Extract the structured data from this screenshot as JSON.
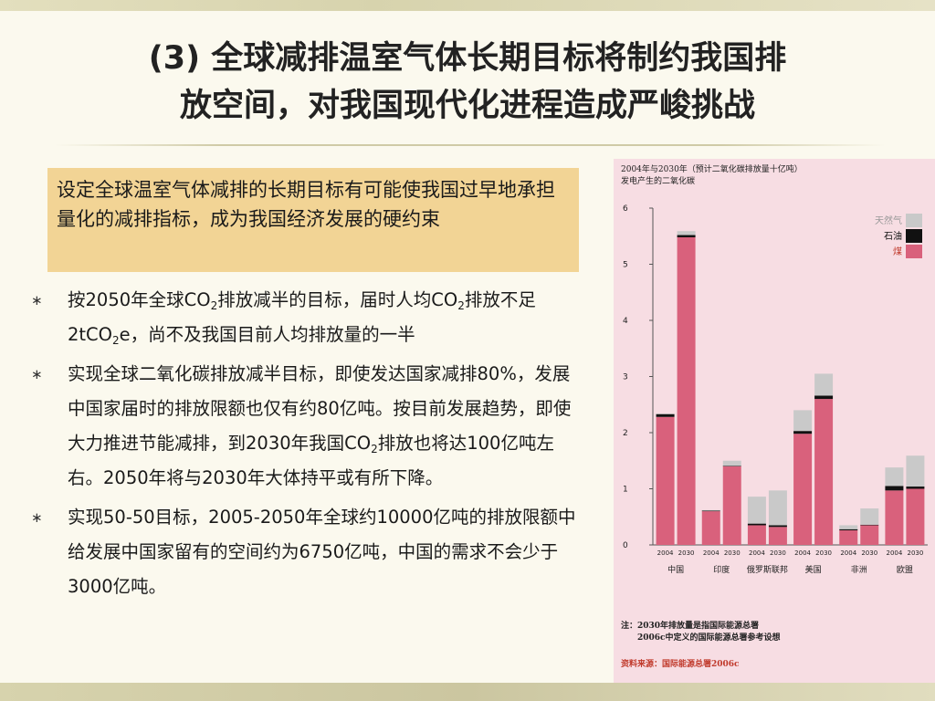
{
  "slide": {
    "title_line1": "(3) 全球减排温室气体长期目标将制约我国排",
    "title_line2": "放空间，对我国现代化进程造成严峻挑战",
    "highlight": "设定全球温室气体减排的长期目标有可能使我国过早地承担量化的减排指标，成为我国经济发展的硬约束",
    "bullet_mark": "∗",
    "bullet1": {
      "p1": "按2050年全球CO",
      "s1": "2",
      "p2": "排放减半的目标，届时人均CO",
      "s2": "2",
      "p3": "排放不足2tCO",
      "s3": "2",
      "p4": "e，尚不及我国目前人均排放量的一半"
    },
    "bullet2": {
      "p1": "实现全球二氧化碳排放减半目标，即使发达国家减排80%，发展中国家届时的排放限额也仅有约80亿吨。按目前发展趋势，即使大力推进节能减排，到2030年我国CO",
      "s1": "2",
      "p2": "排放也将达100亿吨左右。2050年将与2030年大体持平或有所下降。"
    },
    "bullet3": "实现50-50目标，2005-2050年全球约10000亿吨的排放限额中给发展中国家留有的空间约为6750亿吨，中国的需求不会少于3000亿吨。"
  },
  "figure": {
    "caption_line1": "2004年与2030年（预计二氧化碳排放量十亿吨）",
    "caption_line2": "发电产生的二氧化碳",
    "note_line1": "注：2030年排放量是指国际能源总署",
    "note_line2": "2006c中定义的国际能源总署参考设想",
    "source": "资料来源：国际能源总署2006c"
  },
  "chart_data": {
    "type": "bar",
    "stacked": true,
    "ylim": [
      0,
      6
    ],
    "yticks": [
      0,
      1,
      2,
      3,
      4,
      5,
      6
    ],
    "grid": false,
    "legend_position": "top-right",
    "year_labels": [
      "2004",
      "2030"
    ],
    "categories": [
      "中国",
      "印度",
      "俄罗斯联邦",
      "美国",
      "非洲",
      "欧盟"
    ],
    "colors": {
      "煤": "#d9617c",
      "石油": "#111111",
      "天然气": "#c9c9c9"
    },
    "legend": [
      "天然气",
      "石油",
      "煤"
    ],
    "series": [
      {
        "name": "煤",
        "values": [
          [
            2.28,
            5.48
          ],
          [
            0.6,
            1.4
          ],
          [
            0.35,
            0.32
          ],
          [
            1.98,
            2.6
          ],
          [
            0.26,
            0.35
          ],
          [
            0.97,
            1.0
          ]
        ]
      },
      {
        "name": "石油",
        "values": [
          [
            0.05,
            0.04
          ],
          [
            0.01,
            0.01
          ],
          [
            0.03,
            0.03
          ],
          [
            0.05,
            0.06
          ],
          [
            0.02,
            0.01
          ],
          [
            0.08,
            0.04
          ]
        ]
      },
      {
        "name": "天然气",
        "values": [
          [
            0.01,
            0.07
          ],
          [
            0.01,
            0.09
          ],
          [
            0.48,
            0.62
          ],
          [
            0.37,
            0.39
          ],
          [
            0.07,
            0.29
          ],
          [
            0.33,
            0.55
          ]
        ]
      }
    ]
  }
}
